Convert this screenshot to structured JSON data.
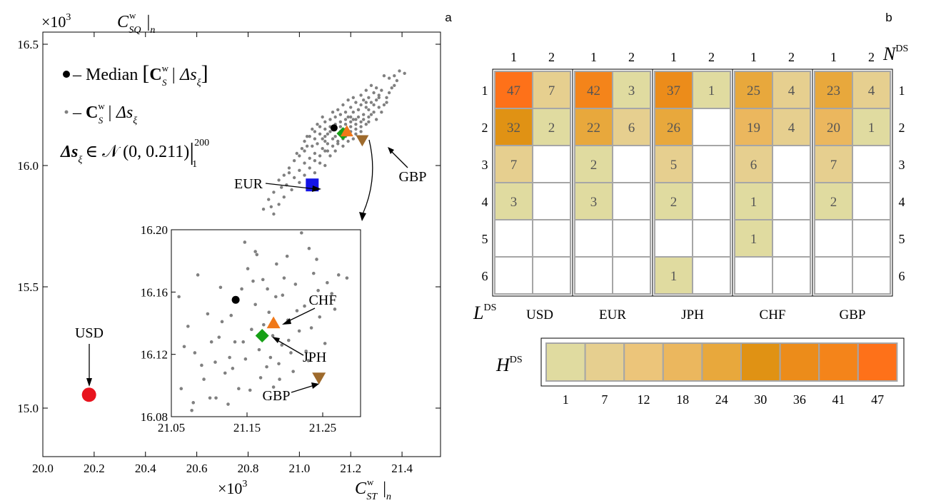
{
  "colors": {
    "point": "#808080",
    "median": "#000000",
    "USD": "#e8141e",
    "EUR": "#1414e6",
    "JPH": "#16a016",
    "CHF": "#f07818",
    "GBP": "#9e6a2c",
    "grid": "#a6a6a6",
    "scale": [
      "#e0dba0",
      "#e6cf8f",
      "#ecc57a",
      "#ebb75e",
      "#e8a83c",
      "#e09214",
      "#ec8c1a",
      "#f4841a",
      "#fe7119"
    ]
  },
  "panel_a": {
    "letter": "a",
    "x_mult": "×10",
    "x_exp": "3",
    "x_label_main": "C",
    "x_label_sup": "w",
    "x_label_sub": "ST",
    "x_label_bar": "|",
    "x_label_n": "n",
    "y_mult": "×10",
    "y_exp": "3",
    "y_label_main": "C",
    "y_label_sup": "w",
    "y_label_sub": "SQ",
    "y_label_bar": "|",
    "y_label_n": "n",
    "legend": {
      "median_prefix": "– Median",
      "median_C": "C",
      "median_sup": "w",
      "median_sub": "S",
      "median_cond": "| Δs",
      "median_xi": "ξ",
      "sample_prefix": "–",
      "sample_C": "C",
      "sample_sup": "w",
      "sample_sub": "S",
      "sample_cond": "| Δs",
      "sample_xi": "ξ",
      "dist_left": "Δs",
      "dist_xi": "ξ",
      "dist_mid": "∈ 𝒩 (0, 0.211)",
      "dist_bar": "|",
      "dist_sup": "200",
      "dist_sub": "1"
    },
    "currency_labels": [
      "USD",
      "EUR",
      "GBP"
    ],
    "inset_labels": [
      "CHF",
      "JPH",
      "GBP"
    ]
  },
  "chart_data": [
    {
      "type": "scatter",
      "x_ticks": [
        "20.0",
        "20.2",
        "20.4",
        "20.6",
        "20.8",
        "21.0",
        "21.2",
        "21.4"
      ],
      "y_ticks": [
        "15.0",
        "15.5",
        "16.0",
        "16.5"
      ],
      "xlim": [
        20.0,
        21.55
      ],
      "ylim": [
        14.8,
        16.55
      ],
      "median": {
        "x": 21.135,
        "y": 16.155
      },
      "currencies": [
        {
          "name": "USD",
          "x": 20.18,
          "y": 15.055,
          "marker": "circle"
        },
        {
          "name": "EUR",
          "x": 21.05,
          "y": 15.92,
          "marker": "square"
        },
        {
          "name": "JPH",
          "x": 21.17,
          "y": 16.132,
          "marker": "diamond"
        },
        {
          "name": "CHF",
          "x": 21.185,
          "y": 16.14,
          "marker": "triangle-up"
        },
        {
          "name": "GBP",
          "x": 21.245,
          "y": 16.105,
          "marker": "triangle-down"
        }
      ],
      "samples": [
        [
          21.41,
          16.38
        ],
        [
          21.33,
          16.37
        ],
        [
          21.38,
          16.35
        ],
        [
          21.37,
          16.33
        ],
        [
          21.32,
          16.31
        ],
        [
          21.29,
          16.3
        ],
        [
          21.35,
          16.3
        ],
        [
          21.31,
          16.29
        ],
        [
          21.27,
          16.28
        ],
        [
          21.34,
          16.28
        ],
        [
          21.25,
          16.27
        ],
        [
          21.3,
          16.27
        ],
        [
          21.22,
          16.26
        ],
        [
          21.28,
          16.26
        ],
        [
          21.33,
          16.25
        ],
        [
          21.24,
          16.25
        ],
        [
          21.2,
          16.24
        ],
        [
          21.26,
          16.24
        ],
        [
          21.31,
          16.24
        ],
        [
          21.23,
          16.23
        ],
        [
          21.27,
          16.23
        ],
        [
          21.18,
          16.22
        ],
        [
          21.21,
          16.22
        ],
        [
          21.29,
          16.22
        ],
        [
          21.25,
          16.21
        ],
        [
          21.16,
          16.21
        ],
        [
          21.2,
          16.2
        ],
        [
          21.23,
          16.2
        ],
        [
          21.27,
          16.2
        ],
        [
          21.14,
          16.2
        ],
        [
          21.18,
          16.19
        ],
        [
          21.22,
          16.19
        ],
        [
          21.25,
          16.19
        ],
        [
          21.3,
          16.19
        ],
        [
          21.12,
          16.19
        ],
        [
          21.16,
          16.18
        ],
        [
          21.2,
          16.18
        ],
        [
          21.24,
          16.18
        ],
        [
          21.27,
          16.18
        ],
        [
          21.1,
          16.18
        ],
        [
          21.14,
          16.17
        ],
        [
          21.18,
          16.17
        ],
        [
          21.22,
          16.17
        ],
        [
          21.26,
          16.17
        ],
        [
          21.12,
          16.16
        ],
        [
          21.16,
          16.16
        ],
        [
          21.2,
          16.16
        ],
        [
          21.24,
          16.16
        ],
        [
          21.08,
          16.16
        ],
        [
          21.1,
          16.15
        ],
        [
          21.14,
          16.15
        ],
        [
          21.18,
          16.15
        ],
        [
          21.22,
          16.15
        ],
        [
          21.06,
          16.14
        ],
        [
          21.12,
          16.14
        ],
        [
          21.16,
          16.14
        ],
        [
          21.2,
          16.14
        ],
        [
          21.24,
          16.14
        ],
        [
          21.08,
          16.13
        ],
        [
          21.1,
          16.12
        ],
        [
          21.14,
          16.12
        ],
        [
          21.18,
          16.12
        ],
        [
          21.22,
          16.13
        ],
        [
          21.04,
          16.12
        ],
        [
          21.06,
          16.11
        ],
        [
          21.1,
          16.1
        ],
        [
          21.13,
          16.11
        ],
        [
          21.17,
          16.11
        ],
        [
          21.21,
          16.11
        ],
        [
          21.02,
          16.1
        ],
        [
          21.07,
          16.09
        ],
        [
          21.11,
          16.09
        ],
        [
          21.15,
          16.09
        ],
        [
          21.19,
          16.1
        ],
        [
          21.05,
          16.08
        ],
        [
          21.09,
          16.07
        ],
        [
          21.13,
          16.08
        ],
        [
          21.17,
          16.08
        ],
        [
          21.02,
          16.06
        ],
        [
          21.06,
          16.05
        ],
        [
          21.1,
          16.06
        ],
        [
          21.14,
          16.06
        ],
        [
          21.0,
          16.04
        ],
        [
          21.04,
          16.03
        ],
        [
          21.08,
          16.04
        ],
        [
          21.12,
          16.04
        ],
        [
          20.98,
          16.02
        ],
        [
          21.02,
          16.01
        ],
        [
          21.06,
          16.02
        ],
        [
          21.1,
          16.0
        ],
        [
          20.96,
          15.99
        ],
        [
          21.0,
          15.98
        ],
        [
          21.04,
          15.99
        ],
        [
          20.94,
          15.96
        ],
        [
          20.98,
          15.95
        ],
        [
          21.02,
          15.96
        ],
        [
          21.0,
          15.93
        ],
        [
          20.95,
          15.92
        ],
        [
          20.92,
          15.94
        ],
        [
          20.97,
          15.9
        ],
        [
          20.9,
          15.89
        ],
        [
          20.94,
          15.87
        ],
        [
          20.88,
          15.86
        ],
        [
          20.92,
          15.84
        ],
        [
          20.86,
          15.82
        ],
        [
          20.9,
          15.8
        ],
        [
          21.28,
          16.33
        ],
        [
          21.36,
          16.32
        ],
        [
          21.3,
          16.32
        ],
        [
          21.19,
          16.27
        ],
        [
          21.26,
          16.31
        ],
        [
          21.32,
          16.22
        ],
        [
          21.21,
          16.28
        ],
        [
          21.15,
          16.23
        ],
        [
          21.35,
          16.36
        ],
        [
          21.39,
          16.39
        ],
        [
          21.28,
          16.21
        ],
        [
          21.24,
          16.29
        ],
        [
          21.17,
          16.25
        ],
        [
          21.13,
          16.22
        ],
        [
          21.09,
          16.2
        ],
        [
          21.11,
          16.13
        ],
        [
          21.07,
          16.17
        ],
        [
          21.03,
          16.08
        ],
        [
          21.19,
          16.2
        ],
        [
          21.23,
          16.23
        ],
        [
          21.05,
          16.15
        ],
        [
          21.15,
          16.1
        ],
        [
          21.01,
          16.07
        ],
        [
          20.99,
          16.05
        ],
        [
          21.09,
          16.11
        ],
        [
          21.26,
          16.26
        ],
        [
          21.13,
          16.16
        ],
        [
          21.08,
          16.01
        ],
        [
          20.96,
          15.97
        ],
        [
          21.03,
          16.12
        ],
        [
          21.34,
          16.26
        ],
        [
          21.29,
          16.25
        ],
        [
          21.21,
          16.19
        ],
        [
          21.17,
          16.13
        ],
        [
          21.11,
          16.06
        ],
        [
          21.06,
          15.97
        ],
        [
          20.93,
          15.91
        ],
        [
          20.89,
          15.83
        ],
        [
          21.37,
          16.37
        ],
        [
          21.31,
          16.28
        ]
      ],
      "inset": {
        "x_ticks": [
          "21.05",
          "21.15",
          "21.25"
        ],
        "y_ticks": [
          "16.08",
          "16.12",
          "16.16",
          "16.20"
        ],
        "xlim": [
          21.05,
          21.3
        ],
        "ylim": [
          16.08,
          16.2
        ],
        "samples": [
          [
            21.06,
            16.157
          ],
          [
            21.072,
            16.138
          ],
          [
            21.081,
            16.121
          ],
          [
            21.093,
            16.104
          ],
          [
            21.101,
            16.092
          ],
          [
            21.108,
            16.115
          ],
          [
            21.113,
            16.131
          ],
          [
            21.121,
            16.108
          ],
          [
            21.129,
            16.145
          ],
          [
            21.134,
            16.128
          ],
          [
            21.139,
            16.098
          ],
          [
            21.143,
            16.162
          ],
          [
            21.148,
            16.117
          ],
          [
            21.151,
            16.175
          ],
          [
            21.156,
            16.136
          ],
          [
            21.161,
            16.152
          ],
          [
            21.166,
            16.123
          ],
          [
            21.171,
            16.168
          ],
          [
            21.176,
            16.112
          ],
          [
            21.179,
            16.147
          ],
          [
            21.184,
            16.132
          ],
          [
            21.189,
            16.178
          ],
          [
            21.193,
            16.104
          ],
          [
            21.197,
            16.158
          ],
          [
            21.204,
            16.142
          ],
          [
            21.208,
            16.121
          ],
          [
            21.214,
            16.165
          ],
          [
            21.219,
            16.135
          ],
          [
            21.226,
            16.151
          ],
          [
            21.231,
            16.116
          ],
          [
            21.238,
            16.172
          ],
          [
            21.246,
            16.144
          ],
          [
            21.253,
            16.127
          ],
          [
            21.262,
            16.159
          ],
          [
            21.271,
            16.171
          ],
          [
            21.282,
            16.169
          ],
          [
            21.063,
            16.098
          ],
          [
            21.077,
            16.084
          ],
          [
            21.09,
            16.113
          ],
          [
            21.103,
            16.128
          ],
          [
            21.117,
            16.141
          ],
          [
            21.125,
            16.088
          ],
          [
            21.136,
            16.155
          ],
          [
            21.147,
            16.192
          ],
          [
            21.154,
            16.097
          ],
          [
            21.163,
            16.184
          ],
          [
            21.172,
            16.139
          ],
          [
            21.181,
            16.118
          ],
          [
            21.188,
            16.157
          ],
          [
            21.196,
            16.126
          ],
          [
            21.203,
            16.183
          ],
          [
            21.211,
            16.109
          ],
          [
            21.222,
            16.198
          ],
          [
            21.235,
            16.137
          ],
          [
            21.242,
            16.181
          ],
          [
            21.256,
            16.166
          ],
          [
            21.266,
            16.149
          ],
          [
            21.115,
            16.163
          ],
          [
            21.098,
            16.146
          ],
          [
            21.067,
            16.125
          ],
          [
            21.085,
            16.171
          ],
          [
            21.127,
            16.118
          ],
          [
            21.145,
            16.128
          ],
          [
            21.158,
            16.167
          ],
          [
            21.168,
            16.105
          ],
          [
            21.177,
            16.162
          ],
          [
            21.185,
            16.099
          ],
          [
            21.199,
            16.169
          ],
          [
            21.216,
            16.148
          ],
          [
            21.228,
            16.122
          ],
          [
            21.244,
            16.161
          ],
          [
            21.131,
            16.111
          ],
          [
            21.109,
            16.092
          ],
          [
            21.079,
            16.089
          ],
          [
            21.161,
            16.186
          ],
          [
            21.192,
            16.114
          ],
          [
            21.205,
            16.129
          ],
          [
            21.232,
            16.188
          ]
        ]
      }
    },
    {
      "type": "heatmap",
      "column_label_main": "N",
      "column_label_sup": "DS",
      "row_label_main": "L",
      "row_label_sup": "DS",
      "column_ticks": [
        "1",
        "2"
      ],
      "row_ticks": [
        "1",
        "2",
        "3",
        "4",
        "5",
        "6"
      ],
      "blocks": [
        {
          "name": "USD",
          "cells": [
            [
              47,
              7
            ],
            [
              32,
              2
            ],
            [
              7,
              null
            ],
            [
              3,
              null
            ],
            [
              null,
              null
            ],
            [
              null,
              null
            ]
          ]
        },
        {
          "name": "EUR",
          "cells": [
            [
              42,
              3
            ],
            [
              22,
              6
            ],
            [
              2,
              null
            ],
            [
              3,
              null
            ],
            [
              null,
              null
            ],
            [
              null,
              null
            ]
          ]
        },
        {
          "name": "JPH",
          "cells": [
            [
              37,
              1
            ],
            [
              26,
              null
            ],
            [
              5,
              null
            ],
            [
              2,
              null
            ],
            [
              null,
              null
            ],
            [
              1,
              null
            ]
          ]
        },
        {
          "name": "CHF",
          "cells": [
            [
              25,
              4
            ],
            [
              19,
              4
            ],
            [
              6,
              null
            ],
            [
              1,
              null
            ],
            [
              1,
              null
            ],
            [
              null,
              null
            ]
          ]
        },
        {
          "name": "GBP",
          "cells": [
            [
              23,
              4
            ],
            [
              20,
              1
            ],
            [
              7,
              null
            ],
            [
              2,
              null
            ],
            [
              null,
              null
            ],
            [
              null,
              null
            ]
          ]
        }
      ]
    },
    {
      "type": "colorbar",
      "letter": "b",
      "label_main": "H",
      "label_sup": "DS",
      "ticks": [
        "1",
        "7",
        "12",
        "18",
        "24",
        "30",
        "36",
        "41",
        "47"
      ],
      "range": [
        1,
        47
      ]
    }
  ]
}
